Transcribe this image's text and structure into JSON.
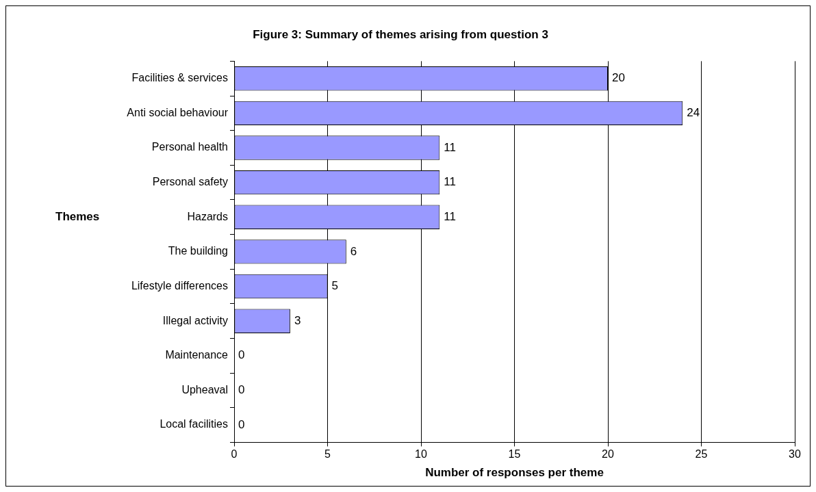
{
  "chart_data": {
    "type": "bar",
    "orientation": "horizontal",
    "title": "Figure 3: Summary of themes arising from question 3",
    "xlabel": "Number of responses per theme",
    "ylabel": "Themes",
    "categories": [
      "Facilities & services",
      "Anti social behaviour",
      "Personal health",
      "Personal safety",
      "Hazards",
      "The building",
      "Lifestyle differences",
      "Illegal activity",
      "Maintenance",
      "Upheaval",
      "Local facilities"
    ],
    "values": [
      20,
      24,
      11,
      11,
      11,
      6,
      5,
      3,
      0,
      0,
      0
    ],
    "color": "#9999ff",
    "xlim": [
      0,
      30
    ],
    "xticks": [
      0,
      5,
      10,
      15,
      20,
      25,
      30
    ],
    "grid": "x",
    "data_labels": true,
    "legend": false
  }
}
